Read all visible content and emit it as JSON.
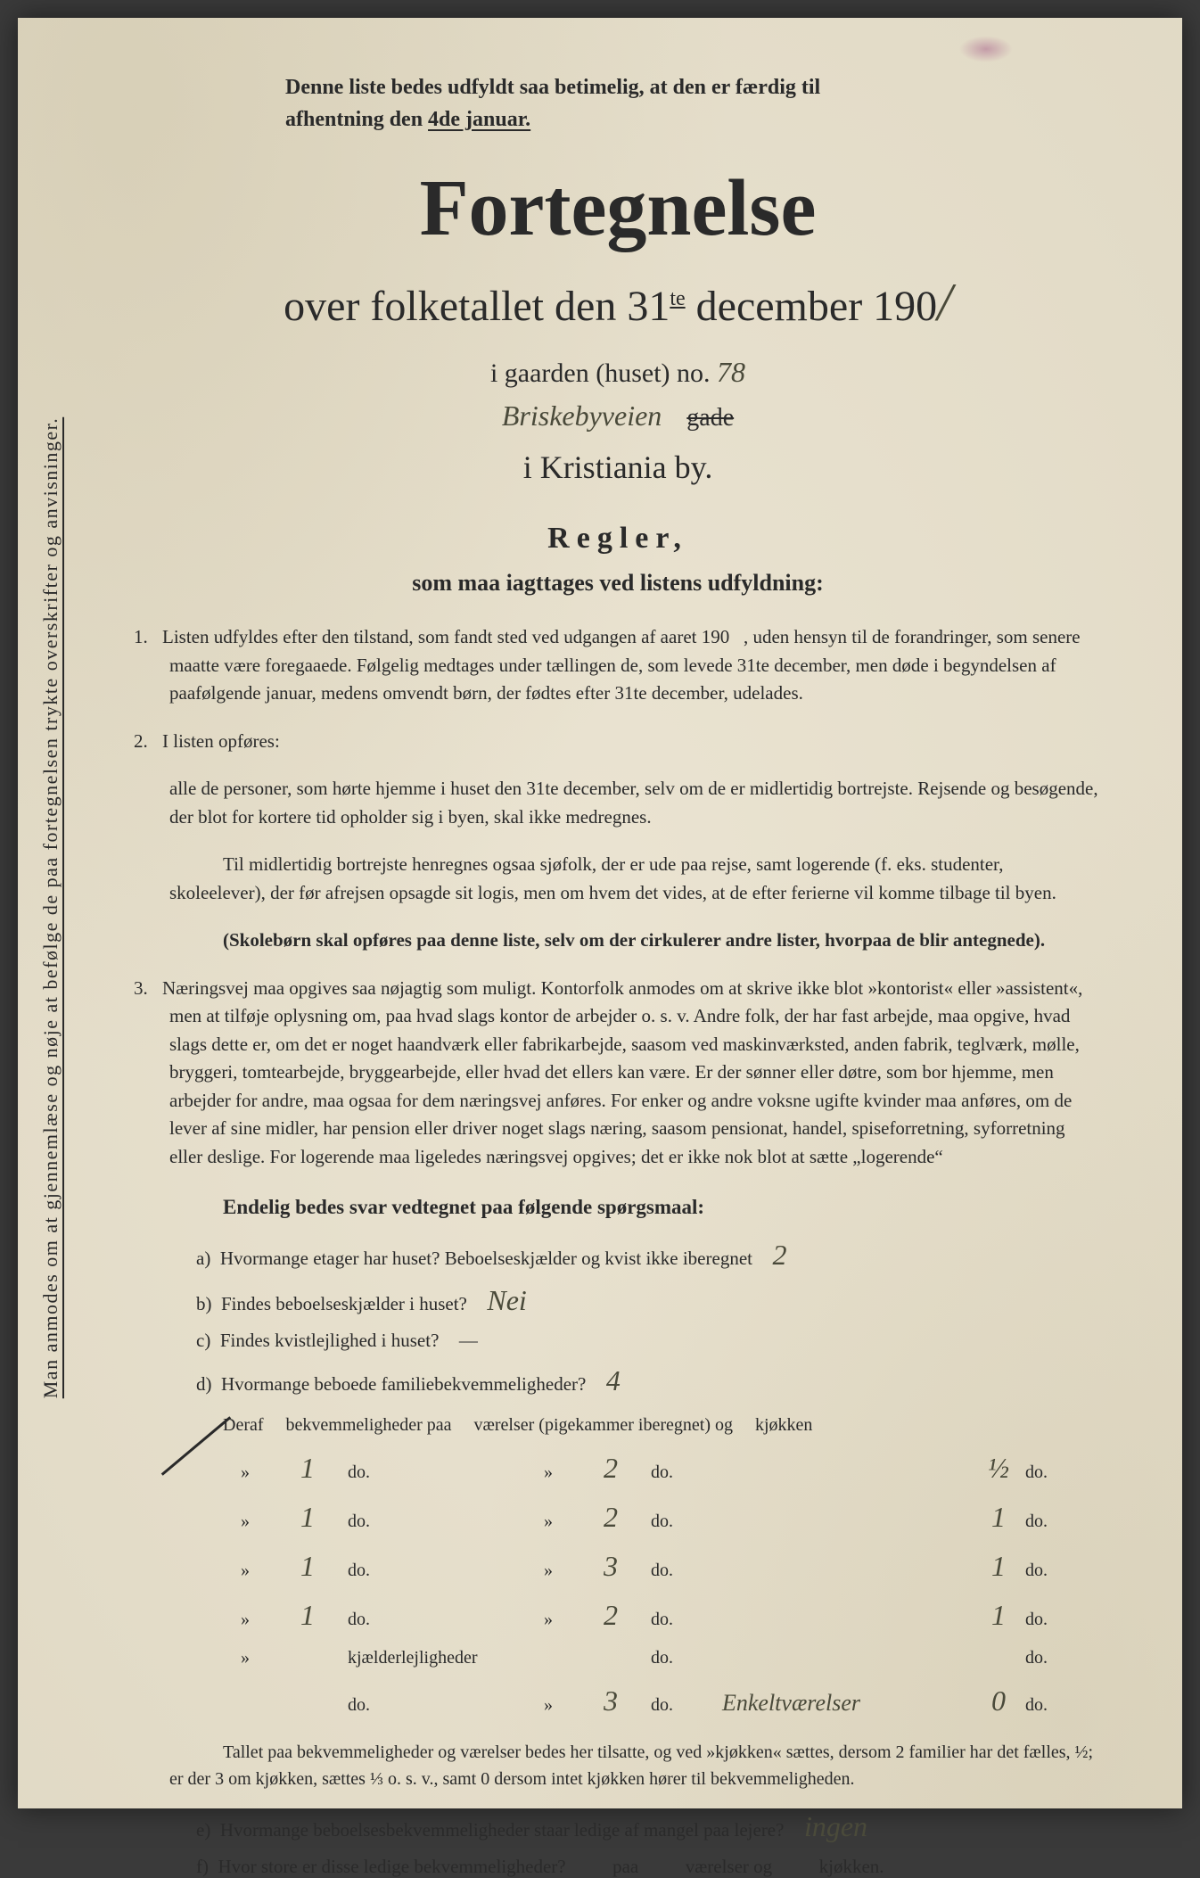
{
  "colors": {
    "paper": "#e8e2d0",
    "ink": "#2a2a2a",
    "handwriting": "#4a4a3a",
    "background": "#3a3a3a"
  },
  "typography": {
    "body_fontsize": 21,
    "title_fontsize": 90,
    "subtitle_fontsize": 48,
    "handwriting_fontsize": 32
  },
  "sideways_text": "Man anmodes om at gjennemlæse og nøje at befølge de paa fortegnelsen trykte overskrifter og anvisninger.",
  "top_note": {
    "line1": "Denne liste bedes udfyldt saa betimelig, at den er færdig til",
    "line2_prefix": "afhentning den ",
    "line2_underlined": "4de januar."
  },
  "title": "Fortegnelse",
  "subtitle_prefix": "over folketallet den 31",
  "subtitle_sup": "te",
  "subtitle_rest": " december 190",
  "year_handwritten": "/",
  "gaard": {
    "label": "i gaarden (huset) no. ",
    "number": "78"
  },
  "street": {
    "name": "Briskebyveien",
    "struck": "gade"
  },
  "city": "i Kristiania by.",
  "regler_heading": "Regler,",
  "regler_sub": "som maa iagttages ved listens udfyldning:",
  "rule1": "Listen udfyldes efter den tilstand, som fandt sted ved udgangen af aaret 190   , uden hensyn til de forandringer, som senere maatte være foregaaede. Følgelig medtages under tællingen de, som levede 31te december, men døde i begyndelsen af paafølgende januar, medens omvendt børn, der fødtes efter 31te december, udelades.",
  "rule2_intro": "I listen opføres:",
  "rule2_body": "alle de personer, som hørte hjemme i huset den 31te december, selv om de er midlertidig bortrejste. Rejsende og besøgende, der blot for kortere tid opholder sig i byen, skal ikke medregnes.",
  "rule2_para2": "Til midlertidig bortrejste henregnes ogsaa sjøfolk, der er ude paa rejse, samt logerende (f. eks. studenter, skoleelever), der før afrejsen opsagde sit logis, men om hvem det vides, at de efter ferierne vil komme tilbage til byen.",
  "rule2_bold": "(Skolebørn skal opføres paa denne liste, selv om der cirkulerer andre lister, hvorpaa de blir antegnede).",
  "rule3": "Næringsvej maa opgives saa nøjagtig som muligt. Kontorfolk anmodes om at skrive ikke blot »kontorist« eller »assistent«, men at tilføje oplysning om, paa hvad slags kontor de arbejder o. s. v. Andre folk, der har fast arbejde, maa opgive, hvad slags dette er, om det er noget haandværk eller fabrikarbejde, saasom ved maskinværksted, anden fabrik, teglværk, mølle, bryggeri, tomtearbejde, bryggearbejde, eller hvad det ellers kan være. Er der sønner eller døtre, som bor hjemme, men arbejder for andre, maa ogsaa for dem næringsvej anføres. For enker og andre voksne ugifte kvinder maa anføres, om de lever af sine midler, har pension eller driver noget slags næring, saasom pensionat, handel, spiseforretning, syforretning eller deslige. For logerende maa ligeledes næringsvej opgives; det er ikke nok blot at sætte „logerende“",
  "endelig": "Endelig bedes svar vedtegnet paa følgende spørgsmaal:",
  "qa": {
    "a_text": "Hvormange etager har huset? Beboelseskjælder og kvist ikke iberegnet",
    "a_ans": "2",
    "b_text": "Findes beboelseskjælder i huset?",
    "b_ans": "Nei",
    "c_text": "Findes kvistlejlighed i huset?",
    "c_ans": "—",
    "d_text": "Hvormange beboede familiebekvemmeligheder?",
    "d_ans": "4"
  },
  "table": {
    "header": "Deraf     bekvemmeligheder paa     værelser (pigekammer iberegnet) og     kjøkken",
    "rows": [
      {
        "mark": "»",
        "bekv": "1",
        "do1": "do.",
        "q2": "»",
        "vaer": "2",
        "do2": "do.",
        "extra": "",
        "kj": "½",
        "do3": "do."
      },
      {
        "mark": "»",
        "bekv": "1",
        "do1": "do.",
        "q2": "»",
        "vaer": "2",
        "do2": "do.",
        "extra": "",
        "kj": "1",
        "do3": "do."
      },
      {
        "mark": "»",
        "bekv": "1",
        "do1": "do.",
        "q2": "»",
        "vaer": "3",
        "do2": "do.",
        "extra": "",
        "kj": "1",
        "do3": "do."
      },
      {
        "mark": "»",
        "bekv": "1",
        "do1": "do.",
        "q2": "»",
        "vaer": "2",
        "do2": "do.",
        "extra": "",
        "kj": "1",
        "do3": "do."
      },
      {
        "mark": "»",
        "bekv": "",
        "do1": "kjælderlejligheder",
        "q2": "",
        "vaer": "",
        "do2": "do.",
        "extra": "",
        "kj": "",
        "do3": "do."
      },
      {
        "mark": "",
        "bekv": "",
        "do1": "do.",
        "q2": "»",
        "vaer": "3",
        "do2": "do.",
        "extra": "Enkeltværelser",
        "kj": "0",
        "do3": "do."
      }
    ]
  },
  "foot_para": "Tallet paa bekvemmeligheder og værelser bedes her tilsatte, og ved »kjøkken« sættes, dersom 2 familier har det fælles, ½; er der 3 om kjøkken, sættes ⅓ o. s. v., samt 0 dersom intet kjøkken hører til bekvemmeligheden.",
  "qe": {
    "text": "Hvormange beboelsesbekvemmeligheder staar ledige af mangel paa lejere?",
    "ans": "ingen"
  },
  "qf": "Hvor store er disse ledige bekvemmeligheder?          paa          værelser og          kjøkken."
}
